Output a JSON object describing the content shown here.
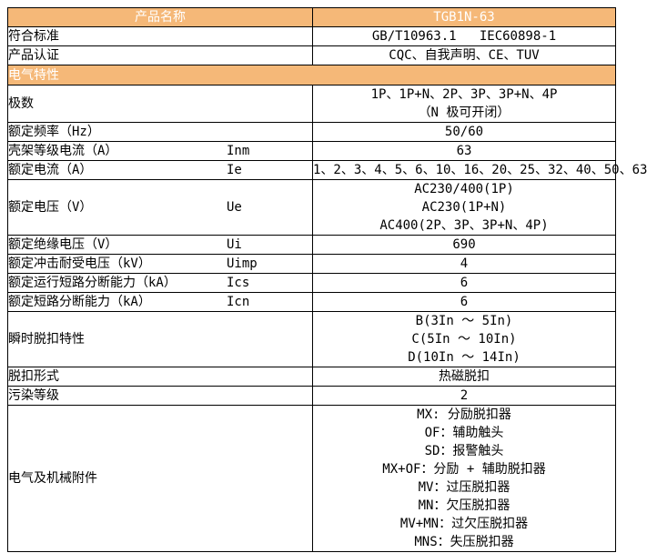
{
  "colors": {
    "accent_orange": "#F5B878",
    "header_text": "#FFFFFF",
    "border": "#000000",
    "body_text": "#000000",
    "page_background": "#FFFFFF"
  },
  "table": {
    "header": {
      "left": "产品名称",
      "right": "TGB1N-63"
    },
    "rows": [
      {
        "type": "data",
        "label": "符合标准",
        "symbol": "",
        "values": [
          "GB/T10963.1   IEC60898-1"
        ]
      },
      {
        "type": "data",
        "label": "产品认证",
        "symbol": "",
        "values": [
          "CQC、自我声明、CE、TUV"
        ]
      },
      {
        "type": "band",
        "label": "电气特性"
      },
      {
        "type": "data",
        "label": "极数",
        "symbol": "",
        "values": [
          "1P、1P+N、2P、3P、3P+N、4P",
          "（N 极可开闭）"
        ]
      },
      {
        "type": "data",
        "label": "额定频率（Hz）",
        "symbol": "",
        "values": [
          "50/60"
        ]
      },
      {
        "type": "data",
        "label": "壳架等级电流（A）",
        "symbol": "Inm",
        "values": [
          "63"
        ]
      },
      {
        "type": "data",
        "label": "额定电流（A）",
        "symbol": "Ie",
        "values": [
          "1、2、3、4、5、6、10、16、20、25、32、40、50、63"
        ]
      },
      {
        "type": "data",
        "label": "额定电压（V）",
        "symbol": "Ue",
        "values": [
          "AC230/400(1P)",
          "AC230(1P+N)",
          "AC400(2P、3P、3P+N、4P)"
        ]
      },
      {
        "type": "data",
        "label": "额定绝缘电压（V）",
        "symbol": "Ui",
        "values": [
          "690"
        ]
      },
      {
        "type": "data",
        "label": "额定冲击耐受电压（kV）",
        "symbol": "Uimp",
        "values": [
          "4"
        ]
      },
      {
        "type": "data",
        "label": "额定运行短路分断能力（kA）",
        "symbol": "Ics",
        "values": [
          "6"
        ]
      },
      {
        "type": "data",
        "label": "额定短路分断能力（kA）",
        "symbol": "Icn",
        "values": [
          "6"
        ]
      },
      {
        "type": "data",
        "label": "瞬时脱扣特性",
        "symbol": "",
        "values": [
          "B(3In ～ 5In)",
          "C(5In ～ 10In)",
          "D(10In ～ 14In)"
        ]
      },
      {
        "type": "data",
        "label": "脱扣形式",
        "symbol": "",
        "values": [
          "热磁脱扣"
        ]
      },
      {
        "type": "data",
        "label": "污染等级",
        "symbol": "",
        "values": [
          "2"
        ]
      },
      {
        "type": "data",
        "label": "电气及机械附件",
        "symbol": "",
        "values": [
          "MX: 分励脱扣器",
          "OF：辅助触头",
          "SD：报警触头",
          "MX+OF：分励 + 辅助脱扣器",
          "MV：过压脱扣器",
          "MN：欠压脱扣器",
          "MV+MN：过欠压脱扣器",
          "MNS：失压脱扣器"
        ]
      }
    ]
  }
}
